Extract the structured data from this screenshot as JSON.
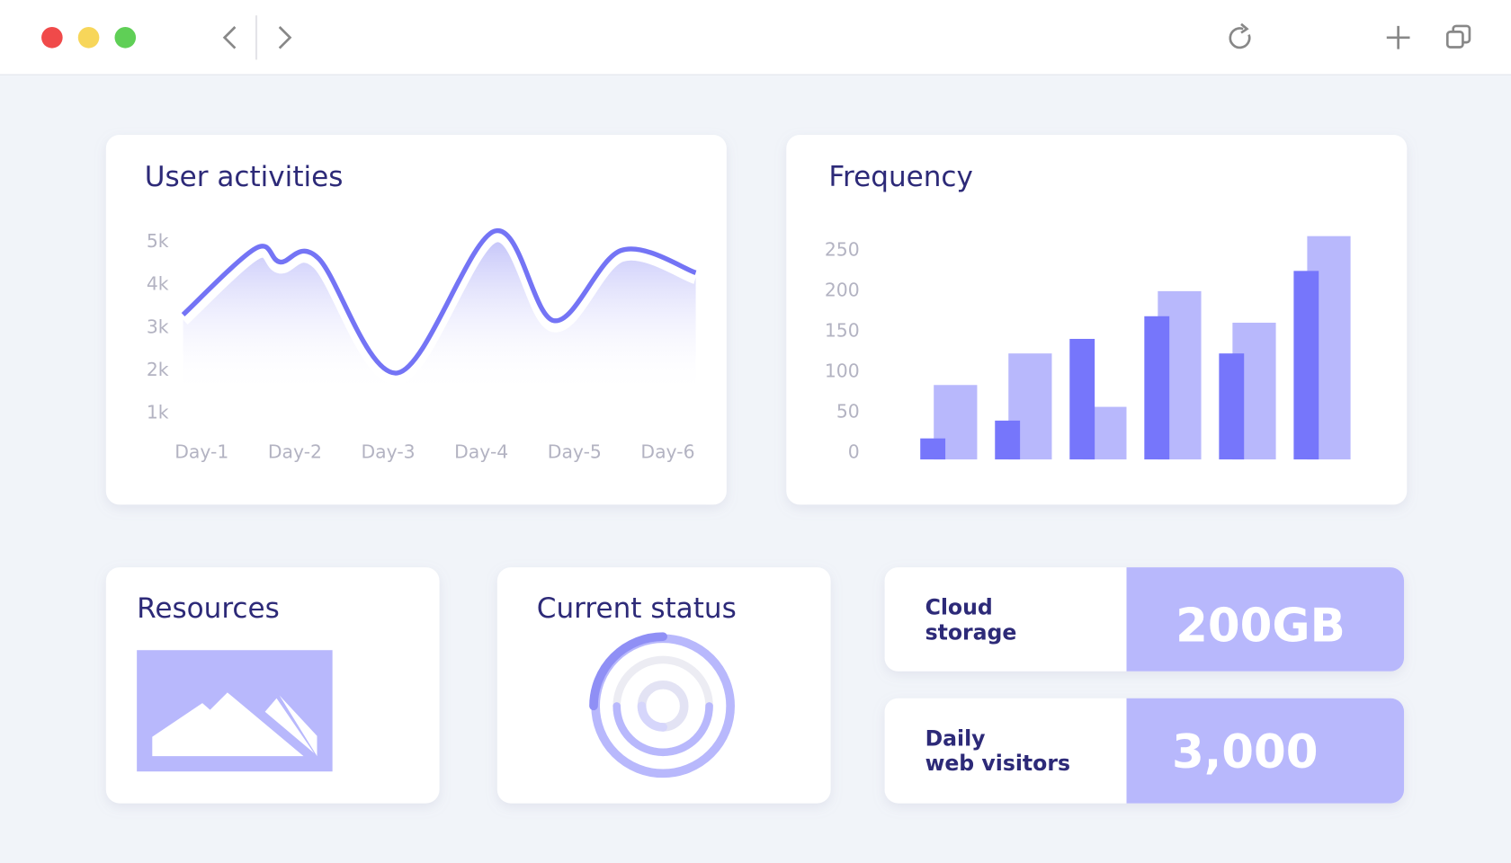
{
  "chart_data": [
    {
      "type": "line",
      "title": "User activities",
      "x": [
        0.8,
        1.58,
        1.84,
        2.25,
        3.1,
        4.14,
        4.78,
        5.5,
        6.3
      ],
      "xlim": [
        0.8,
        6.3
      ],
      "xticks": [
        {
          "value": 1,
          "label": "Day-1"
        },
        {
          "value": 2,
          "label": "Day-2"
        },
        {
          "value": 3,
          "label": "Day-3"
        },
        {
          "value": 4,
          "label": "Day-4"
        },
        {
          "value": 5,
          "label": "Day-5"
        },
        {
          "value": 6,
          "label": "Day-6"
        }
      ],
      "ylim": [
        1000,
        5250
      ],
      "yticks": [
        {
          "value": 1000,
          "label": "1k"
        },
        {
          "value": 2000,
          "label": "2k"
        },
        {
          "value": 3000,
          "label": "3k"
        },
        {
          "value": 4000,
          "label": "4k"
        },
        {
          "value": 5000,
          "label": "5k"
        }
      ],
      "series": [
        {
          "color": "#7474f5",
          "values": [
            3300,
            4850,
            4530,
            4620,
            1940,
            5250,
            3160,
            4800,
            4280
          ]
        }
      ]
    },
    {
      "type": "bar",
      "title": "Frequency",
      "categories": [
        null,
        null,
        null,
        null,
        null,
        null
      ],
      "ylim": [
        0,
        280
      ],
      "yticks": [
        0,
        50,
        100,
        150,
        200,
        250
      ],
      "series": [
        {
          "color": "#b8b8fc",
          "values": [
            92,
            131,
            65,
            208,
            169,
            276
          ]
        },
        {
          "color": "#7676fb",
          "values": [
            26,
            48,
            149,
            177,
            131,
            233
          ]
        }
      ]
    }
  ],
  "cards": {
    "resources": "Resources",
    "status": "Current status",
    "storage": {
      "label": [
        "Cloud",
        "storage"
      ],
      "value": "200GB"
    },
    "visitors": {
      "label": [
        "Daily",
        "web visitors"
      ],
      "value": "3,000"
    }
  }
}
